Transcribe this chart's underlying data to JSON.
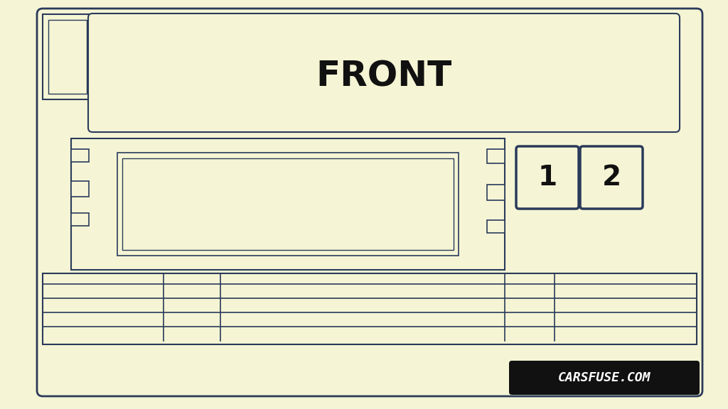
{
  "bg_color": "#f5f5d5",
  "outer_bg": "#e8e8c8",
  "line_color": "#2a3a5a",
  "line_width": 1.5,
  "title": "FRONT",
  "title_fontsize": 36,
  "title_fontweight": "bold",
  "watermark_text": "CARSFUSE.COM",
  "watermark_bg": "#111111",
  "watermark_fg": "#ffffff",
  "box_labels": [
    "1",
    "2"
  ],
  "fig_width": 10.24,
  "fig_height": 5.76
}
